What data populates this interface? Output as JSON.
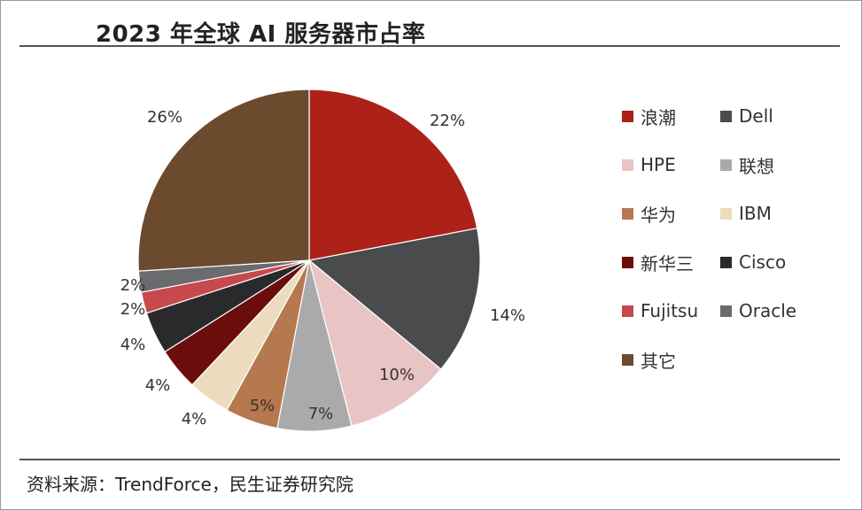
{
  "title": "2023 年全球 AI 服务器市占率",
  "source": "资料来源：TrendForce，民生证券研究院",
  "chart_data": {
    "type": "pie",
    "title": "2023 年全球 AI 服务器市占率",
    "legend_position": "right",
    "slices": [
      {
        "label": "浪潮",
        "value": 22,
        "value_label": "22%",
        "color": "#ac2118"
      },
      {
        "label": "Dell",
        "value": 14,
        "value_label": "14%",
        "color": "#4a4b4d"
      },
      {
        "label": "HPE",
        "value": 10,
        "value_label": "10%",
        "color": "#e9c4c4"
      },
      {
        "label": "联想",
        "value": 7,
        "value_label": "7%",
        "color": "#aaaaaa"
      },
      {
        "label": "华为",
        "value": 5,
        "value_label": "5%",
        "color": "#b6784e"
      },
      {
        "label": "IBM",
        "value": 4,
        "value_label": "4%",
        "color": "#ecdcbd"
      },
      {
        "label": "新华三",
        "value": 4,
        "value_label": "4%",
        "color": "#6a0d0c"
      },
      {
        "label": "Cisco",
        "value": 4,
        "value_label": "4%",
        "color": "#2a2a2c"
      },
      {
        "label": "Fujitsu",
        "value": 2,
        "value_label": "2%",
        "color": "#c7484d"
      },
      {
        "label": "Oracle",
        "value": 2,
        "value_label": "2%",
        "color": "#6a6b6e"
      },
      {
        "label": "其它",
        "value": 26,
        "value_label": "26%",
        "color": "#6c4a2e"
      }
    ]
  }
}
